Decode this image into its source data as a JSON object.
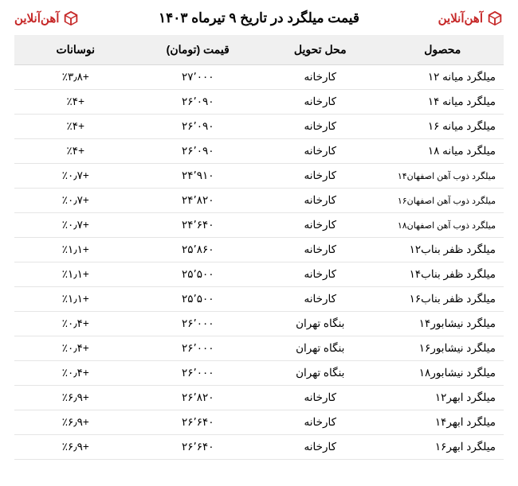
{
  "brand_text": "آهن‌آنلاین",
  "title": "قیمت میلگرد در تاریخ ۹ تیرماه ۱۴۰۳",
  "columns": {
    "product": "محصول",
    "delivery": "محل تحویل",
    "price": "قیمت (تومان)",
    "change": "نوسانات"
  },
  "rows": [
    {
      "product": "میلگرد میانه ۱۲",
      "delivery": "کارخانه",
      "price": "۲۷٬۰۰۰",
      "change": "+٪۳٫۸",
      "small": false
    },
    {
      "product": "میلگرد میانه ۱۴",
      "delivery": "کارخانه",
      "price": "۲۶٬۰۹۰",
      "change": "+٪۴",
      "small": false
    },
    {
      "product": "میلگرد میانه ۱۶",
      "delivery": "کارخانه",
      "price": "۲۶٬۰۹۰",
      "change": "+٪۴",
      "small": false
    },
    {
      "product": "میلگرد میانه ۱۸",
      "delivery": "کارخانه",
      "price": "۲۶٬۰۹۰",
      "change": "+٪۴",
      "small": false
    },
    {
      "product": "میلگرد ذوب آهن اصفهان۱۴",
      "delivery": "کارخانه",
      "price": "۲۴٬۹۱۰",
      "change": "+٪۰٫۷",
      "small": true
    },
    {
      "product": "میلگرد ذوب آهن اصفهان۱۶",
      "delivery": "کارخانه",
      "price": "۲۴٬۸۲۰",
      "change": "+٪۰٫۷",
      "small": true
    },
    {
      "product": "میلگرد ذوب آهن اصفهان۱۸",
      "delivery": "کارخانه",
      "price": "۲۴٬۶۴۰",
      "change": "+٪۰٫۷",
      "small": true
    },
    {
      "product": "میلگرد ظفر بناب۱۲",
      "delivery": "کارخانه",
      "price": "۲۵٬۸۶۰",
      "change": "+٪۱٫۱",
      "small": false
    },
    {
      "product": "میلگرد ظفر بناب۱۴",
      "delivery": "کارخانه",
      "price": "۲۵٬۵۰۰",
      "change": "+٪۱٫۱",
      "small": false
    },
    {
      "product": "میلگرد ظفر بناب۱۶",
      "delivery": "کارخانه",
      "price": "۲۵٬۵۰۰",
      "change": "+٪۱٫۱",
      "small": false
    },
    {
      "product": "میلگرد نیشابور۱۴",
      "delivery": "بنگاه تهران",
      "price": "۲۶٬۰۰۰",
      "change": "+٪۰٫۴",
      "small": false
    },
    {
      "product": "میلگرد نیشابور۱۶",
      "delivery": "بنگاه تهران",
      "price": "۲۶٬۰۰۰",
      "change": "+٪۰٫۴",
      "small": false
    },
    {
      "product": "میلگرد نیشابور۱۸",
      "delivery": "بنگاه تهران",
      "price": "۲۶٬۰۰۰",
      "change": "+٪۰٫۴",
      "small": false
    },
    {
      "product": "میلگرد ابهر۱۲",
      "delivery": "کارخانه",
      "price": "۲۶٬۸۲۰",
      "change": "+٪۶٫۹",
      "small": false
    },
    {
      "product": "میلگرد ابهر۱۴",
      "delivery": "کارخانه",
      "price": "۲۶٬۶۴۰",
      "change": "+٪۶٫۹",
      "small": false
    },
    {
      "product": "میلگرد ابهر۱۶",
      "delivery": "کارخانه",
      "price": "۲۶٬۶۴۰",
      "change": "+٪۶٫۹",
      "small": false
    }
  ],
  "logo_color": "#c62828"
}
